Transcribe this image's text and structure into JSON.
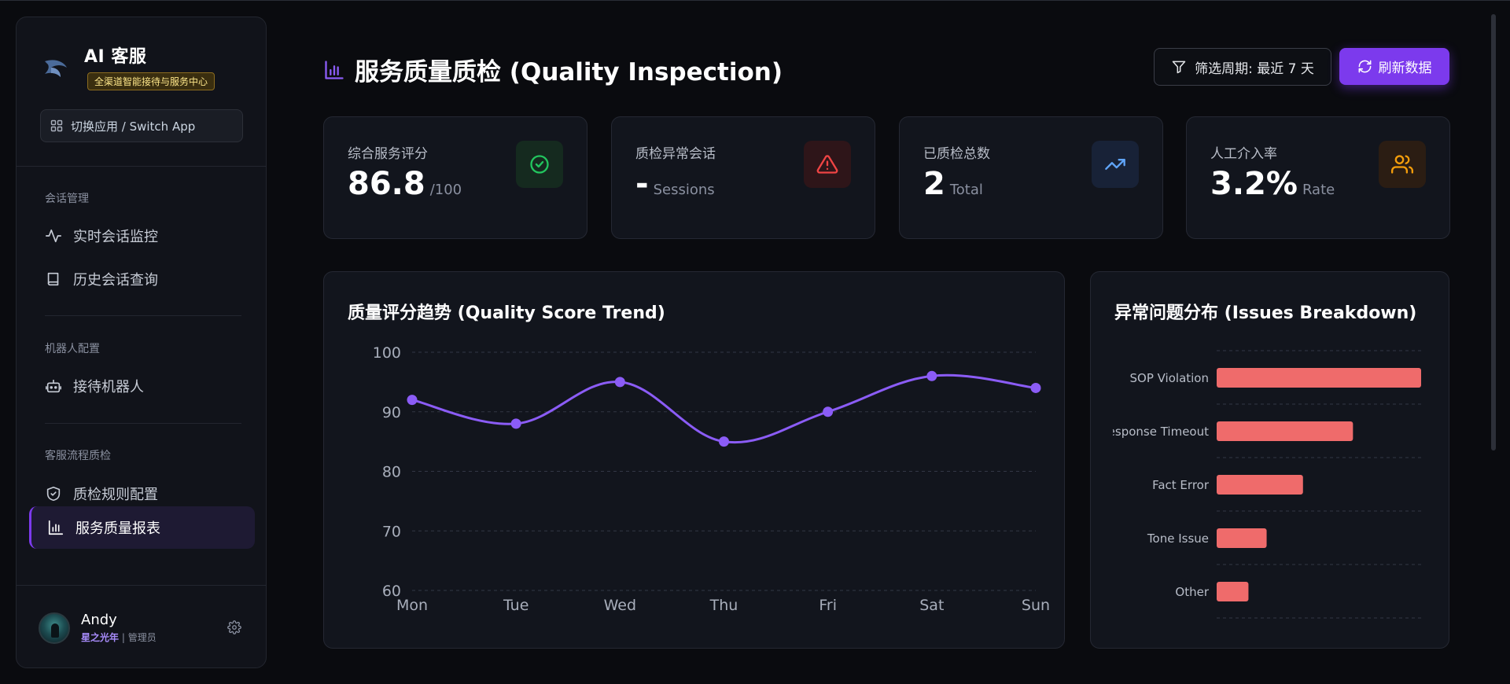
{
  "sidebar": {
    "brand_title": "AI 客服",
    "brand_badge": "全渠道智能接待与服务中心",
    "switch_app_label": "切换应用 / Switch App",
    "groups": [
      {
        "label": "会话管理",
        "items": [
          {
            "label": "实时会话监控",
            "icon": "activity-icon"
          },
          {
            "label": "历史会话查询",
            "icon": "book-icon"
          }
        ]
      },
      {
        "label": "机器人配置",
        "items": [
          {
            "label": "接待机器人",
            "icon": "bot-icon"
          }
        ]
      },
      {
        "label": "客服流程质检",
        "items": [
          {
            "label": "质检规则配置",
            "icon": "shield-check-icon"
          },
          {
            "label": "服务质量报表",
            "icon": "bar-chart-icon",
            "active": true
          }
        ]
      }
    ],
    "user": {
      "name": "Andy",
      "org": "星之光年",
      "separator": "|",
      "role": "管理员"
    }
  },
  "header": {
    "title": "服务质量质检 (Quality Inspection)",
    "filter_label": "筛选周期: 最近 7 天",
    "refresh_label": "刷新数据"
  },
  "stats": [
    {
      "label": "综合服务评分",
      "value": "86.8",
      "unit": "/100",
      "icon": "check-circle-icon",
      "color": "#22c55e"
    },
    {
      "label": "质检异常会话",
      "value": "-",
      "unit": "Sessions",
      "icon": "alert-triangle-icon",
      "color": "#ef4444"
    },
    {
      "label": "已质检总数",
      "value": "2",
      "unit": "Total",
      "icon": "trending-up-icon",
      "color": "#60a5fa"
    },
    {
      "label": "人工介入率",
      "value": "3.2%",
      "unit": "Rate",
      "icon": "users-icon",
      "color": "#f59e0b"
    }
  ],
  "chart_data": [
    {
      "type": "line",
      "title": "质量评分趋势 (Quality Score Trend)",
      "x": [
        "Mon",
        "Tue",
        "Wed",
        "Thu",
        "Fri",
        "Sat",
        "Sun"
      ],
      "series": [
        {
          "values": [
            92,
            88,
            95,
            85,
            90,
            96,
            94
          ]
        }
      ],
      "ylim": [
        60,
        100
      ],
      "yticks": [
        60,
        70,
        80,
        90,
        100
      ],
      "grid": true,
      "color": "#8b5cf6"
    },
    {
      "type": "bar",
      "orientation": "horizontal",
      "title": "异常问题分布 (Issues Breakdown)",
      "categories": [
        "SOP Violation",
        "Response Timeout",
        "Fact Error",
        "Tone Issue",
        "Other"
      ],
      "values": [
        45,
        30,
        19,
        11,
        7
      ],
      "xlim": [
        0,
        45
      ],
      "grid": true,
      "color": "#ef6b6b"
    }
  ]
}
